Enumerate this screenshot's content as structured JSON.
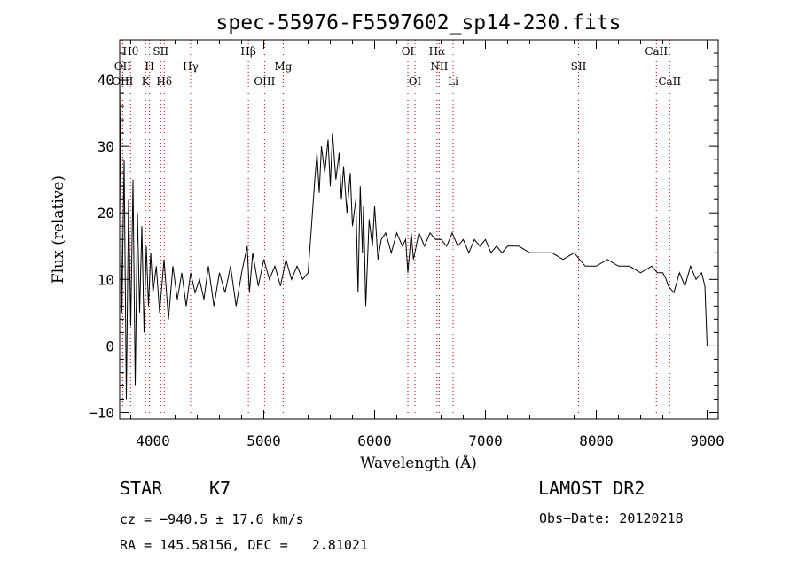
{
  "chart_data": {
    "type": "line",
    "title": "spec-55976-F5597602_sp14-230.fits",
    "xlabel": "Wavelength (Å)",
    "ylabel": "Flux (relative)",
    "xlim": [
      3700,
      9100
    ],
    "ylim": [
      -11,
      46
    ],
    "x_ticks": [
      4000,
      5000,
      6000,
      7000,
      8000,
      9000
    ],
    "y_ticks": [
      -10,
      0,
      10,
      20,
      30,
      40
    ],
    "grid": false,
    "line_color": "#000000",
    "marker_color": "#cc0000",
    "series": [
      {
        "x": [
          3700,
          3720,
          3740,
          3760,
          3780,
          3800,
          3820,
          3840,
          3860,
          3880,
          3900,
          3920,
          3940,
          3960,
          3980,
          4000,
          4030,
          4060,
          4100,
          4140,
          4180,
          4220,
          4260,
          4300,
          4340,
          4380,
          4420,
          4460,
          4500,
          4550,
          4600,
          4650,
          4700,
          4750,
          4800,
          4850,
          4870,
          4900,
          4950,
          5000,
          5050,
          5100,
          5150,
          5200,
          5250,
          5300,
          5350,
          5400,
          5430,
          5460,
          5480,
          5500,
          5520,
          5550,
          5580,
          5600,
          5620,
          5650,
          5680,
          5700,
          5720,
          5750,
          5780,
          5800,
          5830,
          5850,
          5870,
          5890,
          5900,
          5920,
          5950,
          5980,
          6000,
          6030,
          6060,
          6100,
          6150,
          6200,
          6250,
          6280,
          6300,
          6330,
          6350,
          6400,
          6450,
          6500,
          6550,
          6600,
          6650,
          6700,
          6750,
          6800,
          6850,
          6900,
          6950,
          7000,
          7050,
          7100,
          7150,
          7200,
          7300,
          7400,
          7500,
          7600,
          7700,
          7800,
          7900,
          8000,
          8100,
          8200,
          8300,
          8400,
          8500,
          8550,
          8600,
          8630,
          8650,
          8700,
          8750,
          8800,
          8850,
          8900,
          8950,
          8980,
          9000
        ],
        "y": [
          40,
          5,
          28,
          -8,
          22,
          3,
          25,
          -6,
          20,
          5,
          18,
          2,
          15,
          6,
          14,
          8,
          12,
          5,
          13,
          4,
          12,
          7,
          11,
          6,
          11,
          8,
          10,
          7,
          12,
          6,
          11,
          8,
          12,
          6,
          11,
          15,
          8,
          14,
          9,
          13,
          10,
          12,
          9,
          13,
          10,
          12,
          10,
          11,
          18,
          25,
          29,
          23,
          30,
          26,
          31,
          24,
          32,
          25,
          29,
          22,
          27,
          20,
          26,
          18,
          22,
          8,
          24,
          14,
          21,
          6,
          19,
          15,
          21,
          13,
          16,
          17,
          14,
          17,
          15,
          16,
          11,
          17,
          13,
          17,
          15,
          17,
          16,
          16,
          15,
          17,
          15,
          16,
          14,
          16,
          15,
          16,
          14,
          15,
          14,
          15,
          15,
          14,
          14,
          14,
          13,
          14,
          12,
          12,
          13,
          12,
          12,
          11,
          12,
          11,
          11,
          10,
          9,
          8,
          11,
          9,
          12,
          10,
          11,
          9,
          0
        ]
      }
    ],
    "line_markers": [
      {
        "label": "Hθ",
        "wave": 3798,
        "row": 1
      },
      {
        "label": "OII",
        "wave": 3727,
        "row": 2
      },
      {
        "label": "OIII",
        "wave": 3727,
        "row": 3
      },
      {
        "label": "SII",
        "wave": 4070,
        "row": 1
      },
      {
        "label": "H",
        "wave": 3969,
        "row": 2
      },
      {
        "label": "K",
        "wave": 3934,
        "row": 3
      },
      {
        "label": "Hδ",
        "wave": 4102,
        "row": 3
      },
      {
        "label": "Hγ",
        "wave": 4340,
        "row": 2
      },
      {
        "label": "Hβ",
        "wave": 4861,
        "row": 1
      },
      {
        "label": "OIII",
        "wave": 5007,
        "row": 3
      },
      {
        "label": "Mg",
        "wave": 5175,
        "row": 2
      },
      {
        "label": "OI",
        "wave": 6300,
        "row": 1
      },
      {
        "label": "OI",
        "wave": 6364,
        "row": 3
      },
      {
        "label": "Hα",
        "wave": 6563,
        "row": 1
      },
      {
        "label": "NII",
        "wave": 6583,
        "row": 2
      },
      {
        "label": "Li",
        "wave": 6708,
        "row": 3
      },
      {
        "label": "SII",
        "wave": 7840,
        "row": 2
      },
      {
        "label": "CaII",
        "wave": 8542,
        "row": 1
      },
      {
        "label": "CaII",
        "wave": 8662,
        "row": 3
      }
    ]
  },
  "info": {
    "object_class": "STAR",
    "subclass": "K7",
    "survey": "LAMOST DR2",
    "cz": "cz = −940.5 ± 17.6 km/s",
    "obs_date": "Obs−Date: 20120218",
    "coords": "RA = 145.58156, DEC =   2.81021"
  }
}
